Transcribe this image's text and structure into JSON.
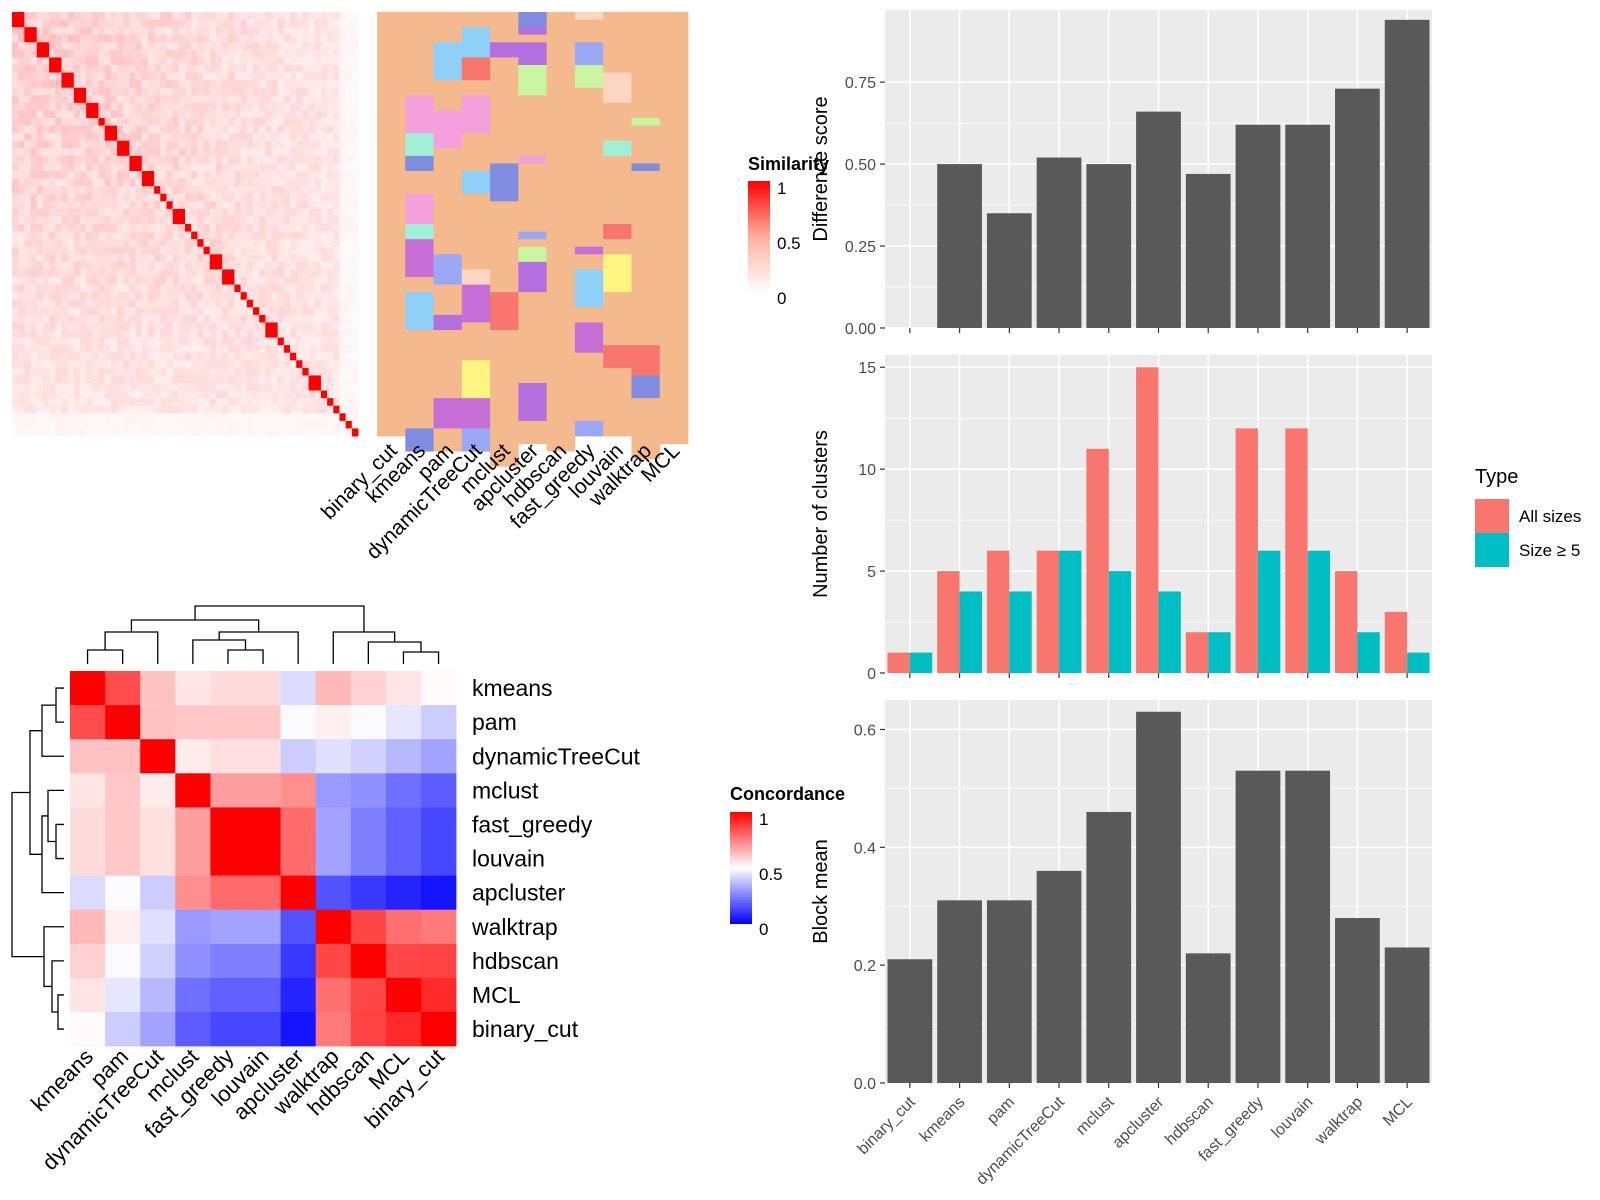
{
  "methods_order": [
    "binary_cut",
    "kmeans",
    "pam",
    "dynamicTreeCut",
    "mclust",
    "apcluster",
    "hdbscan",
    "fast_greedy",
    "louvain",
    "walktrap",
    "MCL"
  ],
  "legends": {
    "similarity": {
      "title": "Similarity",
      "ticks": [
        "1",
        "0.5",
        "0"
      ]
    },
    "concordance": {
      "title": "Concordance",
      "ticks": [
        "1",
        "0.5",
        "0"
      ]
    },
    "type": {
      "title": "Type",
      "items": [
        {
          "label": "All sizes",
          "color": "#F8766D"
        },
        {
          "label": "Size ≥ 5",
          "color": "#00BFC4"
        }
      ]
    }
  },
  "colors": {
    "bar_dark": "#595959",
    "panel_bg": "#EBEBEB",
    "grid": "#FFFFFF",
    "heat_red": "#FF0000",
    "heat_blue": "#0000FF",
    "peach": "#F4BA8E"
  },
  "chart_data": [
    {
      "type": "heatmap",
      "title": "",
      "legend_title": "Similarity",
      "range": [
        0,
        1
      ],
      "column_labels": [
        "binary_cut",
        "kmeans",
        "pam",
        "dynamicTreeCut",
        "mclust",
        "apcluster",
        "hdbscan",
        "fast_greedy",
        "louvain",
        "walktrap",
        "MCL"
      ],
      "diagonal_blocks": [
        2,
        2,
        2,
        2,
        2,
        2,
        2,
        1,
        2,
        2,
        2,
        2,
        1,
        1,
        1,
        2,
        1,
        1,
        1,
        1,
        2,
        2,
        1,
        1,
        1,
        1,
        1,
        2,
        1,
        1,
        1,
        1,
        1,
        2,
        1,
        1,
        1,
        1,
        1,
        1
      ]
    },
    {
      "type": "bar",
      "categories": [
        "binary_cut",
        "kmeans",
        "pam",
        "dynamicTreeCut",
        "mclust",
        "apcluster",
        "hdbscan",
        "fast_greedy",
        "louvain",
        "walktrap",
        "MCL"
      ],
      "values": [
        null,
        0.5,
        0.35,
        0.52,
        0.5,
        0.66,
        0.47,
        0.62,
        0.62,
        0.73,
        0.94
      ],
      "ylabel": "Difference score",
      "ylim": [
        0,
        0.97
      ],
      "yticks": [
        "0.00",
        "0.25",
        "0.50",
        "0.75"
      ],
      "grid": true
    },
    {
      "type": "bar",
      "categories": [
        "binary_cut",
        "kmeans",
        "pam",
        "dynamicTreeCut",
        "mclust",
        "apcluster",
        "hdbscan",
        "fast_greedy",
        "louvain",
        "walktrap",
        "MCL"
      ],
      "series": [
        {
          "name": "All sizes",
          "values": [
            1,
            5,
            6,
            6,
            11,
            15,
            2,
            12,
            12,
            5,
            3
          ]
        },
        {
          "name": "Size ≥ 5",
          "values": [
            1,
            4,
            4,
            6,
            5,
            4,
            2,
            6,
            6,
            2,
            1
          ]
        }
      ],
      "ylabel": "Number of clusters",
      "ylim": [
        0,
        15.6
      ],
      "yticks": [
        "0",
        "5",
        "10",
        "15"
      ],
      "legend": "right",
      "grid": true
    },
    {
      "type": "bar",
      "categories": [
        "binary_cut",
        "kmeans",
        "pam",
        "dynamicTreeCut",
        "mclust",
        "apcluster",
        "hdbscan",
        "fast_greedy",
        "louvain",
        "walktrap",
        "MCL"
      ],
      "values": [
        0.21,
        0.31,
        0.31,
        0.36,
        0.46,
        0.63,
        0.22,
        0.53,
        0.53,
        0.28,
        0.23
      ],
      "ylabel": "Block mean",
      "ylim": [
        0,
        0.65
      ],
      "yticks": [
        "0.0",
        "0.2",
        "0.4",
        "0.6"
      ],
      "grid": true
    },
    {
      "type": "heatmap",
      "legend_title": "Concordance",
      "range": [
        0,
        1
      ],
      "labels": [
        "kmeans",
        "pam",
        "dynamicTreeCut",
        "mclust",
        "fast_greedy",
        "louvain",
        "apcluster",
        "walktrap",
        "hdbscan",
        "MCL",
        "binary_cut"
      ],
      "matrix": [
        [
          1.0,
          0.85,
          0.62,
          0.55,
          0.57,
          0.57,
          0.43,
          0.64,
          0.59,
          0.55,
          0.51
        ],
        [
          0.85,
          1.0,
          0.62,
          0.61,
          0.61,
          0.61,
          0.49,
          0.53,
          0.49,
          0.45,
          0.4
        ],
        [
          0.62,
          0.62,
          1.0,
          0.54,
          0.56,
          0.56,
          0.4,
          0.44,
          0.41,
          0.36,
          0.32
        ],
        [
          0.55,
          0.61,
          0.54,
          1.0,
          0.69,
          0.69,
          0.72,
          0.3,
          0.28,
          0.22,
          0.18
        ],
        [
          0.57,
          0.61,
          0.56,
          0.69,
          1.0,
          1.0,
          0.79,
          0.32,
          0.25,
          0.19,
          0.14
        ],
        [
          0.57,
          0.61,
          0.56,
          0.69,
          1.0,
          1.0,
          0.79,
          0.32,
          0.25,
          0.19,
          0.14
        ],
        [
          0.43,
          0.49,
          0.4,
          0.72,
          0.79,
          0.79,
          1.0,
          0.16,
          0.11,
          0.07,
          0.04
        ],
        [
          0.64,
          0.53,
          0.44,
          0.3,
          0.32,
          0.32,
          0.16,
          1.0,
          0.86,
          0.78,
          0.76
        ],
        [
          0.59,
          0.49,
          0.41,
          0.28,
          0.25,
          0.25,
          0.11,
          0.86,
          1.0,
          0.86,
          0.87
        ],
        [
          0.55,
          0.45,
          0.36,
          0.22,
          0.19,
          0.19,
          0.07,
          0.78,
          0.86,
          1.0,
          0.92
        ],
        [
          0.51,
          0.4,
          0.32,
          0.18,
          0.14,
          0.14,
          0.04,
          0.76,
          0.87,
          0.92,
          1.0
        ]
      ]
    }
  ]
}
